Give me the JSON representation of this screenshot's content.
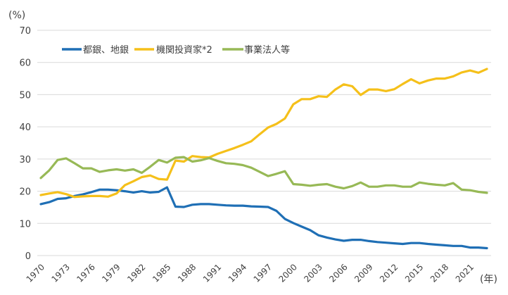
{
  "chart_data": {
    "type": "line",
    "title": "",
    "ylabel": "(%)",
    "xlabel": "(年)",
    "ylim": [
      0,
      70
    ],
    "yticks": [
      0,
      10,
      20,
      30,
      40,
      50,
      60,
      70
    ],
    "grid": true,
    "legend_position": "top-left",
    "x": [
      1970,
      1971,
      1972,
      1973,
      1974,
      1975,
      1976,
      1977,
      1978,
      1979,
      1980,
      1981,
      1982,
      1983,
      1984,
      1985,
      1986,
      1987,
      1988,
      1989,
      1990,
      1991,
      1992,
      1993,
      1994,
      1995,
      1996,
      1997,
      1998,
      1999,
      2000,
      2001,
      2002,
      2003,
      2004,
      2005,
      2006,
      2007,
      2008,
      2009,
      2010,
      2011,
      2012,
      2013,
      2014,
      2015,
      2016,
      2017,
      2018,
      2019,
      2020,
      2021,
      2022,
      2023
    ],
    "xtick_labels": [
      "1970",
      "1973",
      "1976",
      "1979",
      "1982",
      "1985",
      "1988",
      "1991",
      "1994",
      "1997",
      "2000",
      "2003",
      "2006",
      "2009",
      "2012",
      "2015",
      "2018",
      "2021"
    ],
    "series": [
      {
        "name": "都銀、地銀",
        "color": "#1f6fb5",
        "values": [
          16.0,
          16.6,
          17.6,
          17.8,
          18.5,
          19.0,
          19.7,
          20.5,
          20.5,
          20.3,
          20.0,
          19.6,
          20.0,
          19.6,
          19.8,
          21.2,
          15.2,
          15.1,
          15.8,
          16.0,
          16.0,
          15.8,
          15.6,
          15.5,
          15.5,
          15.3,
          15.2,
          15.1,
          13.9,
          11.4,
          10.1,
          9.0,
          7.9,
          6.3,
          5.6,
          5.0,
          4.6,
          4.9,
          4.9,
          4.5,
          4.2,
          4.0,
          3.8,
          3.6,
          3.9,
          3.9,
          3.6,
          3.4,
          3.2,
          3.0,
          3.0,
          2.5,
          2.5,
          2.3
        ]
      },
      {
        "name": "機関投資家*2",
        "color": "#f5c01a",
        "values": [
          18.8,
          19.3,
          19.7,
          19.1,
          18.2,
          18.4,
          18.5,
          18.5,
          18.3,
          19.3,
          21.9,
          23.1,
          24.4,
          24.9,
          23.8,
          23.6,
          29.5,
          29.2,
          30.9,
          30.6,
          30.5,
          31.6,
          32.5,
          33.4,
          34.4,
          35.5,
          37.7,
          39.8,
          40.9,
          42.6,
          47.0,
          48.6,
          48.6,
          49.5,
          49.3,
          51.6,
          53.2,
          52.6,
          49.9,
          51.6,
          51.6,
          51.1,
          51.7,
          53.3,
          54.8,
          53.5,
          54.4,
          55.0,
          55.0,
          55.7,
          56.9,
          57.5,
          56.8,
          58.0
        ]
      },
      {
        "name": "事業法人等",
        "color": "#97b956",
        "values": [
          24.1,
          26.5,
          29.7,
          30.2,
          28.7,
          27.1,
          27.1,
          26.0,
          26.5,
          26.8,
          26.4,
          26.8,
          25.7,
          27.6,
          29.7,
          28.9,
          30.4,
          30.6,
          29.2,
          29.6,
          30.3,
          29.4,
          28.7,
          28.5,
          28.1,
          27.3,
          26.0,
          24.7,
          25.4,
          26.2,
          22.2,
          22.0,
          21.7,
          22.0,
          22.2,
          21.4,
          20.9,
          21.6,
          22.7,
          21.4,
          21.4,
          21.8,
          21.8,
          21.4,
          21.4,
          22.7,
          22.3,
          22.0,
          21.8,
          22.5,
          20.5,
          20.3,
          19.8,
          19.5
        ]
      }
    ]
  }
}
